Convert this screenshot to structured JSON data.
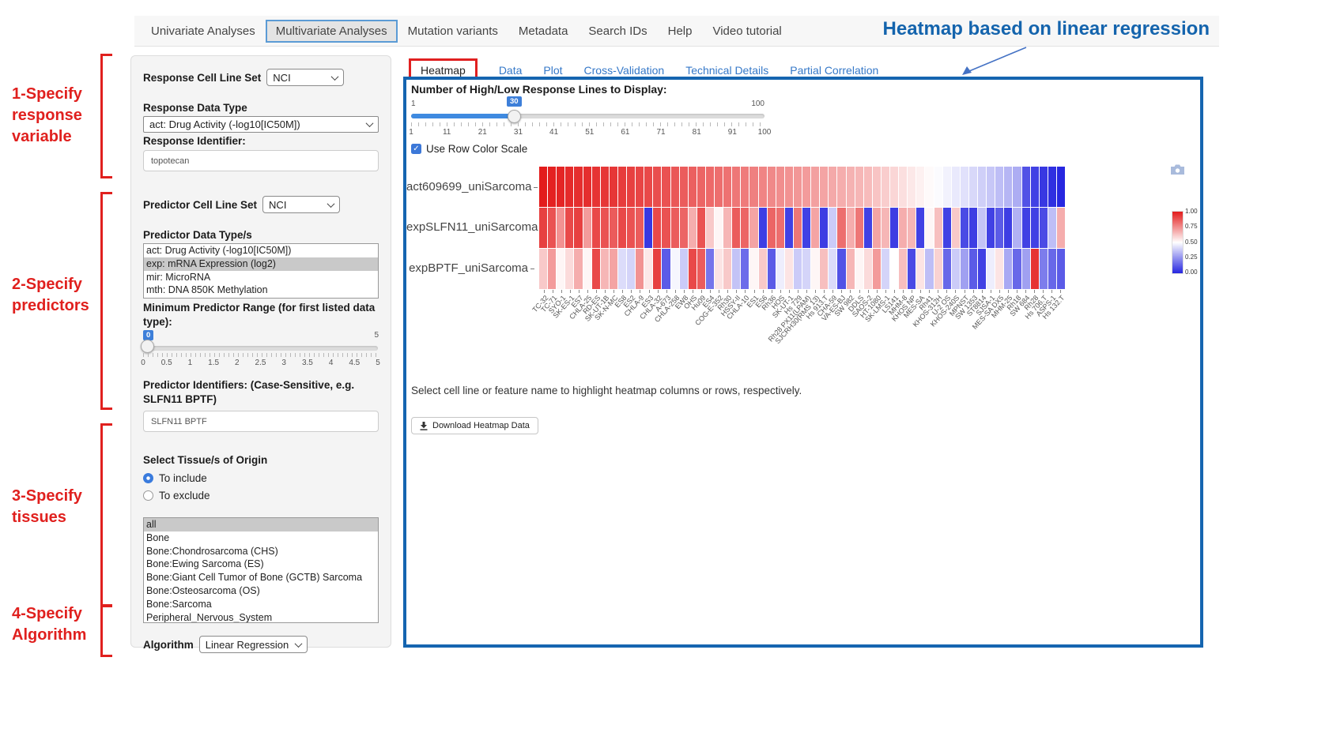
{
  "nav": {
    "items": [
      {
        "label": "Univariate Analyses",
        "active": false
      },
      {
        "label": "Multivariate Analyses",
        "active": true
      },
      {
        "label": "Mutation variants",
        "active": false
      },
      {
        "label": "Metadata",
        "active": false
      },
      {
        "label": "Search IDs",
        "active": false
      },
      {
        "label": "Help",
        "active": false
      },
      {
        "label": "Video tutorial",
        "active": false
      }
    ]
  },
  "annotation": {
    "title": "Heatmap based on linear regression",
    "steps": [
      {
        "text": "1-Specify\nresponse\nvariable"
      },
      {
        "text": "2-Specify\npredictors"
      },
      {
        "text": "3-Specify\ntissues"
      },
      {
        "text": "4-Specify\nAlgorithm"
      }
    ],
    "arrow_icon": "arrow-down-left-icon",
    "accent_red": "#e0201e",
    "accent_blue": "#1464ad"
  },
  "sidebar": {
    "response_cell_line_set": {
      "label": "Response Cell Line Set",
      "value": "NCI"
    },
    "response_data_type": {
      "label": "Response Data Type",
      "value": "act: Drug Activity (-log10[IC50M])"
    },
    "response_identifier": {
      "label": "Response Identifier:",
      "value": "topotecan"
    },
    "predictor_cell_line_set": {
      "label": "Predictor Cell Line Set",
      "value": "NCI"
    },
    "predictor_data_types": {
      "label": "Predictor Data Type/s",
      "options": [
        "act: Drug Activity (-log10[IC50M])",
        "exp: mRNA Expression (log2)",
        "mir: MicroRNA",
        "mth: DNA 850K Methylation"
      ],
      "selected_index": 1
    },
    "min_predictor_range": {
      "label": "Minimum Predictor Range (for first listed data type):",
      "value": "0",
      "max_label": "5",
      "min": 0,
      "max": 5,
      "ticks": [
        "0",
        "0.5",
        "1",
        "1.5",
        "2",
        "2.5",
        "3",
        "3.5",
        "4",
        "4.5",
        "5"
      ]
    },
    "predictor_identifiers": {
      "label": "Predictor Identifiers: (Case-Sensitive, e.g. SLFN11 BPTF)",
      "value": "SLFN11 BPTF"
    },
    "tissue": {
      "label": "Select Tissue/s of Origin",
      "radios": [
        {
          "label": "To include",
          "checked": true
        },
        {
          "label": "To exclude",
          "checked": false
        }
      ],
      "options": [
        "all",
        "Bone",
        "Bone:Chondrosarcoma (CHS)",
        "Bone:Ewing Sarcoma (ES)",
        "Bone:Giant Cell Tumor of Bone (GCTB) Sarcoma",
        "Bone:Osteosarcoma (OS)",
        "Bone:Sarcoma",
        "Peripheral_Nervous_System"
      ],
      "selected_index": 0
    },
    "algorithm": {
      "label": "Algorithm",
      "value": "Linear Regression"
    }
  },
  "main": {
    "tabs": [
      {
        "label": "Heatmap",
        "active": true
      },
      {
        "label": "Data",
        "active": false
      },
      {
        "label": "Plot",
        "active": false
      },
      {
        "label": "Cross-Validation",
        "active": false
      },
      {
        "label": "Technical Details",
        "active": false
      },
      {
        "label": "Partial Correlation",
        "active": false
      }
    ],
    "lines_slider": {
      "label": "Number of High/Low Response Lines to Display:",
      "value": "30",
      "min_label": "1",
      "max_label": "100",
      "min": 1,
      "max": 100,
      "ticks": [
        "1",
        "11",
        "21",
        "31",
        "41",
        "51",
        "61",
        "71",
        "81",
        "91",
        "100"
      ]
    },
    "row_color_scale": {
      "label": "Use Row Color Scale",
      "checked": true,
      "check_glyph": "✓"
    },
    "hint": "Select cell line or feature name to highlight heatmap columns or rows, respectively.",
    "download_button": {
      "label": "Download Heatmap Data",
      "icon": "download-icon"
    },
    "camera_icon": "camera-icon"
  },
  "chart_data": {
    "type": "heatmap",
    "rows": [
      "act609699_uniSarcoma",
      "expSLFN11_uniSarcoma",
      "expBPTF_uniSarcoma"
    ],
    "columns": [
      "TC-32",
      "TC-71",
      "SYO-1",
      "SK-ES-1",
      "ES7",
      "CHLA-25",
      "RD-ES",
      "SK-UT-1B",
      "SK-N-MC",
      "ES8",
      "ES2",
      "CHLA-9",
      "ES3",
      "CHLA-32",
      "A-673",
      "CHLA-258",
      "EW8",
      "OHS",
      "Hu09",
      "ES4",
      "COG-E-352",
      "Rh30",
      "HSSY-II",
      "CHLA-10",
      "ES1",
      "ES6",
      "Rh36",
      "HOS",
      "SK-UT-1",
      "Hs 729",
      "Rh28 PX11(LPAM)",
      "SJCRH30(RMS 13)",
      "Hs 913.T",
      "CHA-59",
      "VA-ES-BJ",
      "SW 982",
      "DDLS",
      "SAOS-2",
      "HT-1080",
      "SK-LMS-1",
      "LS141",
      "MHM-8",
      "KHOS NP",
      "MES-SA",
      "Rh41",
      "KHOS-312H",
      "U-2 OS",
      "KHOS-240S",
      "MPNST",
      "SW 1353",
      "ST8814",
      "SJSA-1",
      "MES-SA DX5",
      "MHM-25",
      "Rh18",
      "SW 684",
      "Rh28",
      "Hs 706.T",
      "ASPS-1",
      "Hs 132.T"
    ],
    "values": [
      [
        1.0,
        0.99,
        0.98,
        0.97,
        0.96,
        0.96,
        0.95,
        0.94,
        0.94,
        0.93,
        0.92,
        0.91,
        0.9,
        0.89,
        0.88,
        0.87,
        0.86,
        0.85,
        0.84,
        0.83,
        0.82,
        0.81,
        0.8,
        0.79,
        0.78,
        0.77,
        0.76,
        0.75,
        0.74,
        0.73,
        0.72,
        0.71,
        0.7,
        0.69,
        0.68,
        0.67,
        0.66,
        0.65,
        0.63,
        0.61,
        0.59,
        0.57,
        0.55,
        0.53,
        0.51,
        0.49,
        0.47,
        0.45,
        0.43,
        0.41,
        0.39,
        0.37,
        0.35,
        0.33,
        0.31,
        0.1,
        0.06,
        0.04,
        0.02,
        0.0
      ],
      [
        0.92,
        0.88,
        0.74,
        0.9,
        0.92,
        0.72,
        0.9,
        0.88,
        0.86,
        0.9,
        0.88,
        0.86,
        0.04,
        0.9,
        0.88,
        0.86,
        0.84,
        0.68,
        0.88,
        0.62,
        0.52,
        0.66,
        0.86,
        0.84,
        0.7,
        0.05,
        0.84,
        0.82,
        0.06,
        0.8,
        0.06,
        0.7,
        0.05,
        0.38,
        0.82,
        0.68,
        0.8,
        0.06,
        0.7,
        0.66,
        0.05,
        0.68,
        0.66,
        0.06,
        0.52,
        0.64,
        0.06,
        0.62,
        0.08,
        0.05,
        0.36,
        0.06,
        0.12,
        0.05,
        0.32,
        0.06,
        0.06,
        0.08,
        0.35,
        0.68
      ],
      [
        0.62,
        0.72,
        0.52,
        0.58,
        0.68,
        0.52,
        0.9,
        0.66,
        0.7,
        0.42,
        0.4,
        0.74,
        0.55,
        0.92,
        0.12,
        0.48,
        0.38,
        0.9,
        0.86,
        0.18,
        0.56,
        0.62,
        0.36,
        0.16,
        0.52,
        0.62,
        0.12,
        0.46,
        0.56,
        0.38,
        0.4,
        0.52,
        0.64,
        0.42,
        0.1,
        0.66,
        0.52,
        0.58,
        0.72,
        0.4,
        0.5,
        0.64,
        0.08,
        0.56,
        0.35,
        0.6,
        0.15,
        0.38,
        0.28,
        0.12,
        0.06,
        0.46,
        0.56,
        0.3,
        0.15,
        0.28,
        0.95,
        0.2,
        0.15,
        0.12
      ]
    ],
    "value_range": [
      0,
      1
    ],
    "colorbar": {
      "ticks": [
        "1.00",
        "0.75",
        "0.50",
        "0.25",
        "0.00"
      ],
      "high_color": "#e31c1c",
      "mid_color": "#ffffff",
      "low_color": "#2727e0"
    },
    "legend_position": "right",
    "grid": false
  }
}
